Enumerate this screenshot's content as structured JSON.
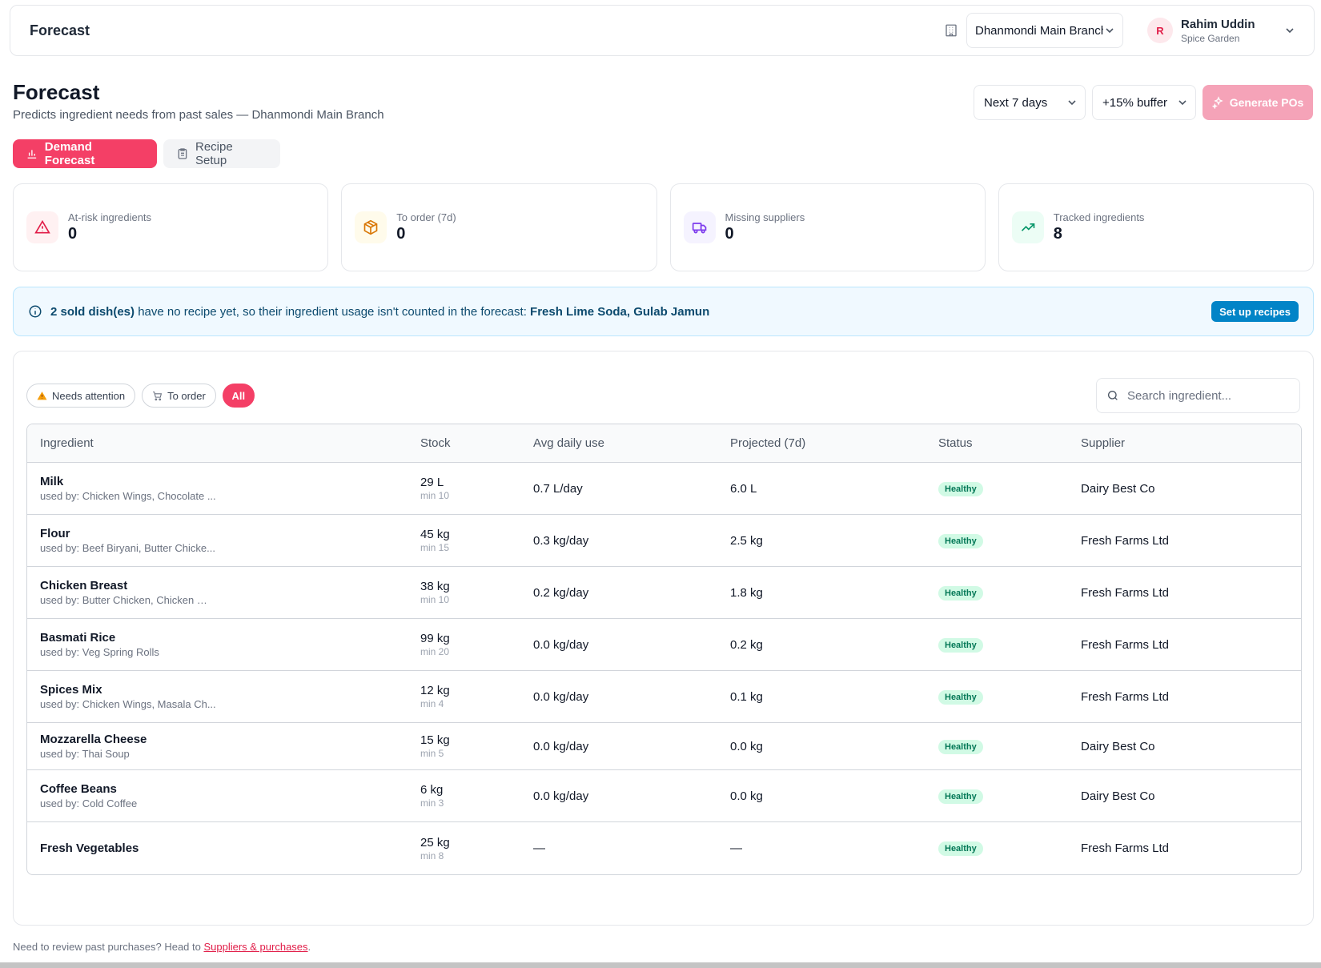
{
  "topbar": {
    "title": "Forecast",
    "branch": "Dhanmondi Main Branch",
    "user_initial": "R",
    "user_name": "Rahim Uddin",
    "user_org": "Spice Garden"
  },
  "page": {
    "title": "Forecast",
    "subtitle": "Predicts ingredient needs from past sales — Dhanmondi Main Branch",
    "period": "Next 7 days",
    "buffer": "+15% buffer",
    "generate_label": "Generate POs"
  },
  "tabs": [
    {
      "label": "Demand Forecast",
      "active": true
    },
    {
      "label": "Recipe Setup",
      "active": false
    }
  ],
  "stats": [
    {
      "label": "At-risk ingredients",
      "value": "0",
      "icon": "alert-triangle-icon",
      "color": "#e11d48"
    },
    {
      "label": "To order (7d)",
      "value": "0",
      "icon": "package-icon",
      "color": "#d97706"
    },
    {
      "label": "Missing suppliers",
      "value": "0",
      "icon": "truck-icon",
      "color": "#7c3aed"
    },
    {
      "label": "Tracked ingredients",
      "value": "8",
      "icon": "trending-up-icon",
      "color": "#059669"
    }
  ],
  "banner": {
    "count_text": "2 sold dish(es)",
    "middle_text": " have no recipe yet, so their ingredient usage isn't counted in the forecast: ",
    "dishes": "Fresh Lime Soda, Gulab Jamun",
    "button": "Set up recipes"
  },
  "filters": {
    "needs_attention": "Needs attention",
    "to_order": "To order",
    "all": "All",
    "search_placeholder": "Search ingredient..."
  },
  "table": {
    "headers": [
      "Ingredient",
      "Stock",
      "Avg daily use",
      "Projected (7d)",
      "Status",
      "Supplier"
    ],
    "rows": [
      {
        "name": "Milk",
        "used_by": "used by: Chicken Wings, Chocolate ...",
        "stock": "29 L",
        "min": "min 10",
        "avg": "0.7 L/day",
        "projected": "6.0 L",
        "status": "Healthy",
        "supplier": "Dairy Best Co"
      },
      {
        "name": "Flour",
        "used_by": "used by: Beef Biryani, Butter Chicke...",
        "stock": "45 kg",
        "min": "min 15",
        "avg": "0.3 kg/day",
        "projected": "2.5 kg",
        "status": "Healthy",
        "supplier": "Fresh Farms Ltd"
      },
      {
        "name": "Chicken Breast",
        "used_by": "used by: Butter Chicken, Chicken Wi...",
        "stock": "38 kg",
        "min": "min 10",
        "avg": "0.2 kg/day",
        "projected": "1.8 kg",
        "status": "Healthy",
        "supplier": "Fresh Farms Ltd"
      },
      {
        "name": "Basmati Rice",
        "used_by": "used by: Veg Spring Rolls",
        "stock": "99 kg",
        "min": "min 20",
        "avg": "0.0 kg/day",
        "projected": "0.2 kg",
        "status": "Healthy",
        "supplier": "Fresh Farms Ltd"
      },
      {
        "name": "Spices Mix",
        "used_by": "used by: Chicken Wings, Masala Ch...",
        "stock": "12 kg",
        "min": "min 4",
        "avg": "0.0 kg/day",
        "projected": "0.1 kg",
        "status": "Healthy",
        "supplier": "Fresh Farms Ltd"
      },
      {
        "name": "Mozzarella Cheese",
        "used_by": "used by: Thai Soup",
        "stock": "15 kg",
        "min": "min 5",
        "avg": "0.0 kg/day",
        "projected": "0.0 kg",
        "status": "Healthy",
        "supplier": "Dairy Best Co"
      },
      {
        "name": "Coffee Beans",
        "used_by": "used by: Cold Coffee",
        "stock": "6 kg",
        "min": "min 3",
        "avg": "0.0 kg/day",
        "projected": "0.0 kg",
        "status": "Healthy",
        "supplier": "Dairy Best Co"
      },
      {
        "name": "Fresh Vegetables",
        "used_by": "",
        "stock": "25 kg",
        "min": "min 8",
        "avg": "—",
        "projected": "—",
        "status": "Healthy",
        "supplier": "Fresh Farms Ltd"
      }
    ]
  },
  "footer": {
    "text": "Need to review past purchases? Head to ",
    "link": "Suppliers & purchases",
    "end": "."
  }
}
